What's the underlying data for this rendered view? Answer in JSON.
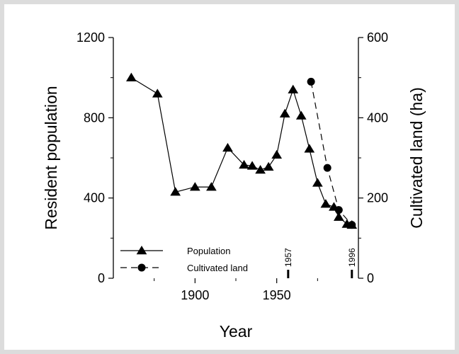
{
  "chart_data": {
    "type": "line",
    "xlabel": "Year",
    "ylabel_left": "Resident population",
    "ylabel_right": "Cultivated land (ha)",
    "xlim": [
      1850,
      2000
    ],
    "ylim_left": [
      0,
      1200
    ],
    "ylim_right": [
      0,
      600
    ],
    "x_ticks": [
      1900,
      1950
    ],
    "y_ticks_left": [
      0,
      400,
      800,
      1200
    ],
    "y_ticks_right": [
      0,
      200,
      400,
      600
    ],
    "grid": false,
    "legend_position": "bottom-left",
    "series": [
      {
        "name": "Population",
        "axis": "left",
        "marker": "triangle",
        "line_style": "solid",
        "x": [
          1861,
          1877,
          1888,
          1900,
          1910,
          1920,
          1930,
          1935,
          1940,
          1945,
          1950,
          1955,
          1960,
          1965,
          1970,
          1975,
          1980,
          1985,
          1988,
          1993,
          1996
        ],
        "y": [
          1000,
          920,
          430,
          455,
          455,
          650,
          565,
          560,
          540,
          555,
          615,
          820,
          940,
          810,
          645,
          475,
          370,
          355,
          305,
          270,
          265
        ]
      },
      {
        "name": "Cultivated land",
        "axis": "right",
        "marker": "circle",
        "line_style": "dashed",
        "x": [
          1971,
          1981,
          1988,
          1996
        ],
        "y": [
          490,
          275,
          170,
          133
        ]
      }
    ],
    "annotations": [
      {
        "label": "1957",
        "x": 1957
      },
      {
        "label": "1996",
        "x": 1996
      }
    ]
  }
}
